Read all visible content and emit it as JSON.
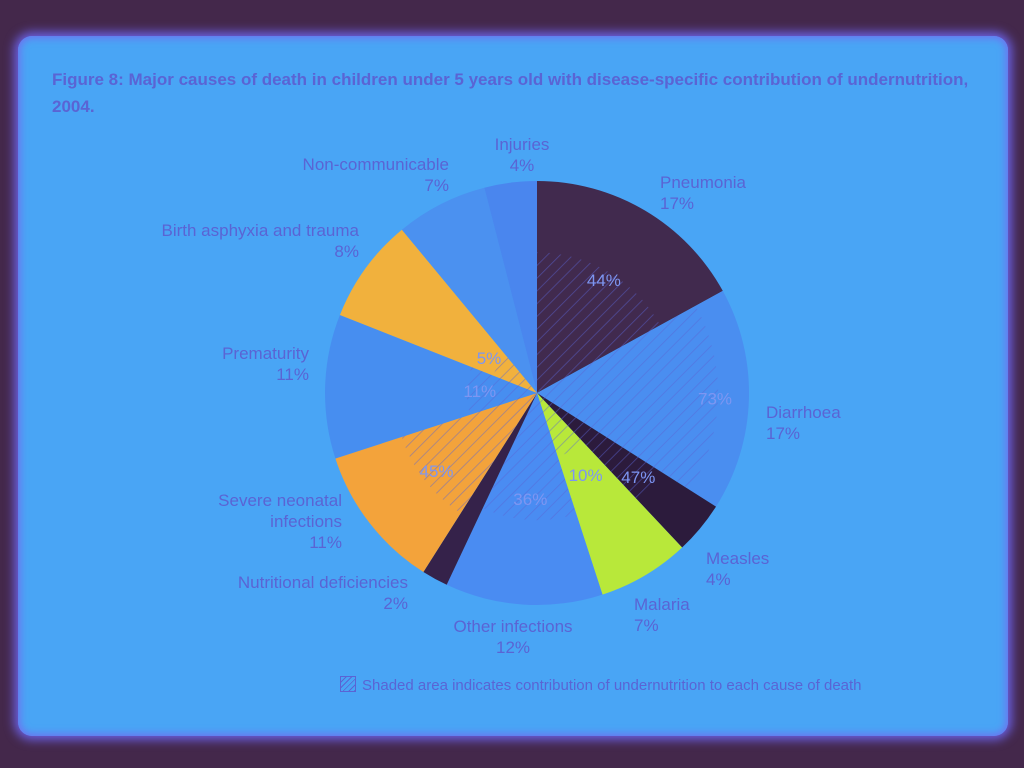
{
  "title": "Figure 8: Major causes of death in children under 5 years old with disease-specific contribution of undernutrition, 2004.",
  "note": "Shaded area indicates contribution of undernutrition to each cause of death",
  "chart_data": {
    "type": "pie",
    "title": "Figure 8: Major causes of death in children under 5 years old with disease-specific contribution of undernutrition, 2004.",
    "slices": [
      {
        "name": "Pneumonia",
        "label": "Pneumonia",
        "value_label": "17%",
        "value": 17,
        "shaded_label": "44%",
        "shaded": 44,
        "color": "#412a4e"
      },
      {
        "name": "Diarrhoea",
        "label": "Diarrhoea",
        "value_label": "17%",
        "value": 17,
        "shaded_label": "73%",
        "shaded": 73,
        "color": "#4a8ef0"
      },
      {
        "name": "Measles",
        "label": "Measles",
        "value_label": "4%",
        "value": 4,
        "shaded_label": "47%",
        "shaded": 47,
        "color": "#2c1b3c"
      },
      {
        "name": "Malaria",
        "label": "Malaria",
        "value_label": "7%",
        "value": 7,
        "shaded_label": "10%",
        "shaded": 10,
        "color": "#b8e83a"
      },
      {
        "name": "Other infections",
        "label": "Other infections",
        "value_label": "12%",
        "value": 12,
        "shaded_label": "36%",
        "shaded": 36,
        "color": "#4a8cf2"
      },
      {
        "name": "Nutritional deficiencies",
        "label": "Nutritional deficiencies",
        "value_label": "2%",
        "value": 2,
        "shaded_label": "",
        "shaded": null,
        "color": "#35224a"
      },
      {
        "name": "Severe neonatal infections",
        "label": "Severe neonatal infections",
        "value_label": "11%",
        "value": 11,
        "shaded_label": "45%",
        "shaded": 45,
        "color": "#f3a33b"
      },
      {
        "name": "Prematurity",
        "label": "Prematurity",
        "value_label": "11%",
        "value": 11,
        "shaded_label": "11%",
        "shaded": 11,
        "color": "#478ef0"
      },
      {
        "name": "Birth asphyxia and trauma",
        "label": "Birth asphyxia and trauma",
        "value_label": "8%",
        "value": 8,
        "shaded_label": "5%",
        "shaded": 5,
        "color": "#f1b13d"
      },
      {
        "name": "Non-communicable",
        "label": "Non-communicable",
        "value_label": "7%",
        "value": 7,
        "shaded_label": "",
        "shaded": null,
        "color": "#4b91f0"
      },
      {
        "name": "Injuries",
        "label": "Injuries",
        "value_label": "4%",
        "value": 4,
        "shaded_label": "",
        "shaded": null,
        "color": "#4a86ee"
      }
    ]
  }
}
